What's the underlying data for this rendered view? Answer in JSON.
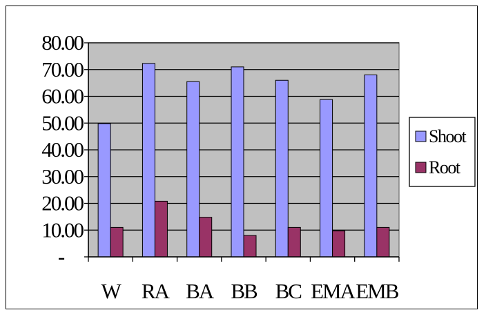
{
  "chart_data": {
    "type": "bar",
    "categories": [
      "W",
      "RA",
      "BA",
      "BB",
      "BC",
      "EMA",
      "EMB"
    ],
    "series": [
      {
        "name": "Shoot",
        "values": [
          49.8,
          72.3,
          65.5,
          71.0,
          66.0,
          58.8,
          68.0
        ],
        "color": "#9999ff"
      },
      {
        "name": "Root",
        "values": [
          11.0,
          20.8,
          14.8,
          8.0,
          11.0,
          9.7,
          11.0
        ],
        "color": "#993366"
      }
    ],
    "ylim": [
      0,
      80
    ],
    "yticks": [
      0,
      10,
      20,
      30,
      40,
      50,
      60,
      70,
      80
    ],
    "ytick_labels": [
      "-",
      "10.00",
      "20.00",
      "30.00",
      "40.00",
      "50.00",
      "60.00",
      "70.00",
      "80.00"
    ],
    "grid": true,
    "plot_background": "#c0c0c0",
    "legend_position": "right"
  }
}
